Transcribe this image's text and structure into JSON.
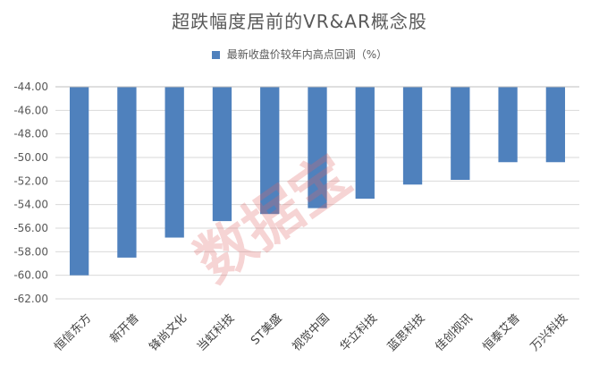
{
  "chart_data": {
    "type": "bar",
    "title": "超跌幅度居前的VR&AR概念股",
    "legend": [
      "最新收盘价较年内高点回调（%）"
    ],
    "categories": [
      "恒信东方",
      "新开普",
      "锋尚文化",
      "当虹科技",
      "ST美盛",
      "视觉中国",
      "华立科技",
      "蓝思科技",
      "佳创视讯",
      "恒泰艾普",
      "万兴科技"
    ],
    "series": [
      {
        "name": "最新收盘价较年内高点回调（%）",
        "values": [
          -60.0,
          -58.5,
          -56.8,
          -55.4,
          -54.8,
          -54.3,
          -53.5,
          -52.3,
          -51.9,
          -50.4,
          -50.4
        ]
      }
    ],
    "y_ticks": [
      "-44.00",
      "-46.00",
      "-48.00",
      "-50.00",
      "-52.00",
      "-54.00",
      "-56.00",
      "-58.00",
      "-60.00",
      "-62.00"
    ],
    "ylim": [
      -62,
      -44
    ],
    "bar_color": "#4F81BD",
    "grid": true,
    "legend_position": "top-center",
    "watermark": "数据宝"
  }
}
